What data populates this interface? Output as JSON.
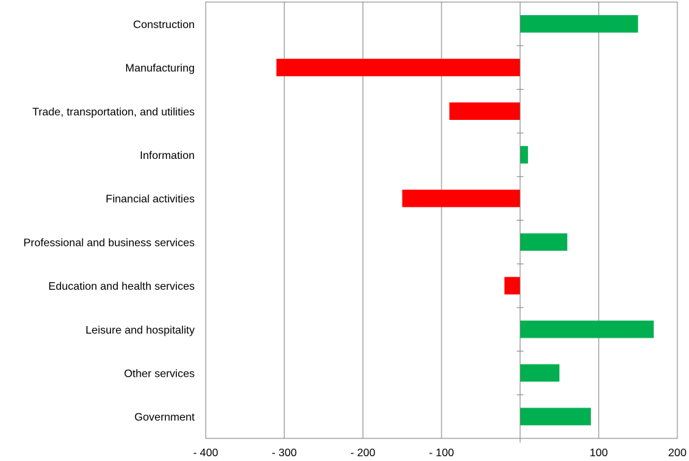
{
  "chart_data": {
    "type": "bar",
    "orientation": "horizontal",
    "categories": [
      "Construction",
      "Manufacturing",
      "Trade, transportation, and utilities",
      "Information",
      "Financial activities",
      "Professional and business services",
      "Education and health services",
      "Leisure and hospitality",
      "Other services",
      "Government"
    ],
    "values": [
      150,
      -310,
      -90,
      10,
      -150,
      60,
      -20,
      170,
      50,
      90
    ],
    "x_ticks": [
      -400,
      -300,
      -200,
      -100,
      0,
      100,
      200
    ],
    "x_tick_labels": [
      "- 400",
      "- 300",
      "- 200",
      "- 100",
      "",
      "100",
      "200"
    ],
    "xlim": [
      -400,
      200
    ],
    "title": "",
    "xlabel": "",
    "ylabel": "",
    "grid": "vertical",
    "legend": "none",
    "colors": {
      "positive": "#00b050",
      "negative": "#ff0000",
      "grid": "#808080",
      "axis": "#808080"
    }
  }
}
